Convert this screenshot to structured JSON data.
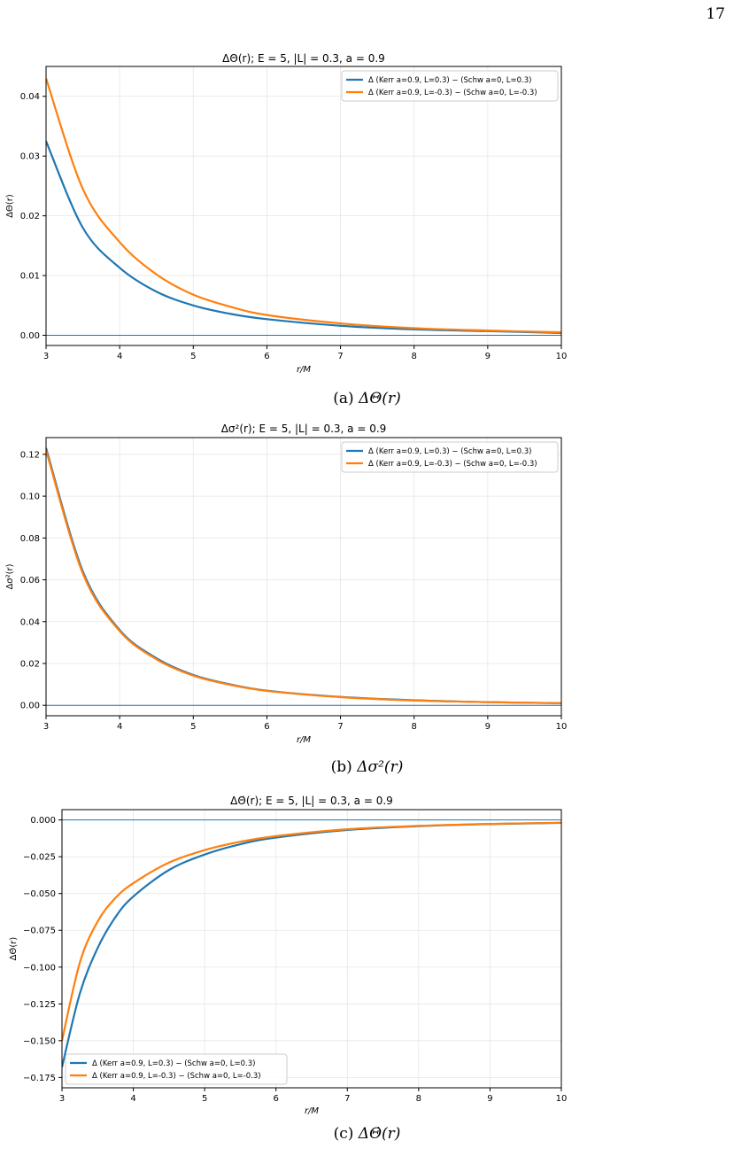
{
  "page_number": "17",
  "figures": [
    {
      "caption_label": "(a)",
      "caption_math": "ΔΘ(r)",
      "chart_data": {
        "type": "line",
        "title": "ΔΘ(r);  E = 5,  |L| = 0.3,  a = 0.9",
        "xlabel": "r/M",
        "ylabel": "ΔΘ(r)",
        "xlim": [
          3,
          10
        ],
        "ylim": [
          -0.0017,
          0.045
        ],
        "xticks": [
          3,
          4,
          5,
          6,
          7,
          8,
          9,
          10
        ],
        "yticks": [
          0.0,
          0.01,
          0.02,
          0.03,
          0.04
        ],
        "ytick_labels": [
          "0.00",
          "0.01",
          "0.02",
          "0.03",
          "0.04"
        ],
        "grid": true,
        "reference_line_y": 0,
        "legend_position": "top-right",
        "x": [
          3.0,
          3.5,
          4.0,
          4.5,
          5.0,
          5.5,
          6.0,
          7.0,
          8.0,
          9.0,
          10.0
        ],
        "series": [
          {
            "name": "Δ (Kerr a=0.9, L=0.3) − (Schw a=0, L=0.3)",
            "color": "#1f77b4",
            "values": [
              0.0325,
              0.018,
              0.0113,
              0.0073,
              0.005,
              0.0036,
              0.0027,
              0.0016,
              0.001,
              0.0007,
              0.0004
            ]
          },
          {
            "name": "Δ (Kerr a=0.9, L=-0.3) − (Schw a=0, L=-0.3)",
            "color": "#ff7f0e",
            "values": [
              0.043,
              0.0245,
              0.0156,
              0.0102,
              0.0068,
              0.0048,
              0.0034,
              0.002,
              0.0012,
              0.0008,
              0.0005
            ]
          }
        ]
      }
    },
    {
      "caption_label": "(b)",
      "caption_math": "Δσ²(r)",
      "chart_data": {
        "type": "line",
        "title": "Δσ²(r);  E = 5,  |L| = 0.3,  a = 0.9",
        "xlabel": "r/M",
        "ylabel": "Δσ²(r)",
        "xlim": [
          3,
          10
        ],
        "ylim": [
          -0.005,
          0.128
        ],
        "xticks": [
          3,
          4,
          5,
          6,
          7,
          8,
          9,
          10
        ],
        "yticks": [
          0.0,
          0.02,
          0.04,
          0.06,
          0.08,
          0.1,
          0.12
        ],
        "ytick_labels": [
          "0.00",
          "0.02",
          "0.04",
          "0.06",
          "0.08",
          "0.10",
          "0.12"
        ],
        "grid": true,
        "reference_line_y": 0,
        "legend_position": "top-right",
        "x": [
          3.0,
          3.5,
          4.0,
          4.5,
          5.0,
          5.5,
          6.0,
          7.0,
          8.0,
          9.0,
          10.0
        ],
        "series": [
          {
            "name": "Δ (Kerr a=0.9, L=0.3) − (Schw a=0, L=0.3)",
            "color": "#1f77b4",
            "values": [
              0.123,
              0.064,
              0.036,
              0.0225,
              0.0145,
              0.01,
              0.007,
              0.004,
              0.0024,
              0.0015,
              0.001
            ]
          },
          {
            "name": "Δ (Kerr a=0.9, L=-0.3) − (Schw a=0, L=-0.3)",
            "color": "#ff7f0e",
            "values": [
              0.122,
              0.063,
              0.0355,
              0.022,
              0.0142,
              0.0098,
              0.0069,
              0.0039,
              0.0023,
              0.0015,
              0.001
            ]
          }
        ]
      }
    },
    {
      "caption_label": "(c)",
      "caption_math": "ΔΘ̇(r)",
      "chart_data": {
        "type": "line",
        "title": "ΔΘ̇(r);  E = 5,  |L| = 0.3,  a = 0.9",
        "xlabel": "r/M",
        "ylabel": "ΔΘ̇(r)",
        "xlim": [
          3,
          10
        ],
        "ylim": [
          -0.182,
          0.007
        ],
        "xticks": [
          3,
          4,
          5,
          6,
          7,
          8,
          9,
          10
        ],
        "yticks": [
          0.0,
          -0.025,
          -0.05,
          -0.075,
          -0.1,
          -0.125,
          -0.15,
          -0.175
        ],
        "ytick_labels": [
          "0.000",
          "−0.025",
          "−0.050",
          "−0.075",
          "−0.100",
          "−0.125",
          "−0.150",
          "−0.175"
        ],
        "grid": true,
        "reference_line_y": 0,
        "legend_position": "bottom-left",
        "x": [
          3.0,
          3.25,
          3.5,
          3.75,
          4.0,
          4.5,
          5.0,
          5.5,
          6.0,
          7.0,
          8.0,
          9.0,
          10.0
        ],
        "series": [
          {
            "name": "Δ (Kerr a=0.9, L=0.3) − (Schw a=0, L=0.3)",
            "color": "#1f77b4",
            "values": [
              -0.168,
              -0.118,
              -0.087,
              -0.066,
              -0.052,
              -0.034,
              -0.0235,
              -0.0165,
              -0.012,
              -0.0068,
              -0.0042,
              -0.0028,
              -0.002
            ]
          },
          {
            "name": "Δ (Kerr a=0.9, L=-0.3) − (Schw a=0, L=-0.3)",
            "color": "#ff7f0e",
            "values": [
              -0.15,
              -0.097,
              -0.069,
              -0.053,
              -0.043,
              -0.029,
              -0.0205,
              -0.0148,
              -0.011,
              -0.0063,
              -0.004,
              -0.0027,
              -0.0019
            ]
          }
        ]
      }
    }
  ]
}
